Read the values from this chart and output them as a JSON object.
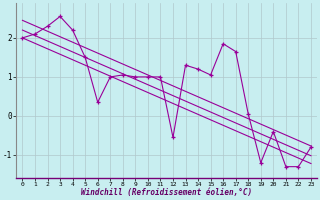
{
  "xlabel": "Windchill (Refroidissement éolien,°C)",
  "bg_color": "#c8eef0",
  "line_color": "#990099",
  "grid_color": "#b0c8cc",
  "xlim": [
    -0.5,
    23.5
  ],
  "ylim": [
    -1.6,
    2.9
  ],
  "yticks": [
    -1,
    0,
    1,
    2
  ],
  "xticks": [
    0,
    1,
    2,
    3,
    4,
    5,
    6,
    7,
    8,
    9,
    10,
    11,
    12,
    13,
    14,
    15,
    16,
    17,
    18,
    19,
    20,
    21,
    22,
    23
  ],
  "hours": [
    0,
    1,
    2,
    3,
    4,
    5,
    6,
    7,
    8,
    9,
    10,
    11,
    12,
    13,
    14,
    15,
    16,
    17,
    18,
    19,
    20,
    21,
    22,
    23
  ],
  "line1": [
    2.0,
    2.1,
    2.3,
    2.55,
    2.2,
    1.5,
    0.35,
    1.0,
    1.05,
    1.0,
    1.0,
    1.0,
    -0.55,
    1.3,
    1.2,
    1.05,
    1.85,
    1.65,
    0.05,
    -1.2,
    -0.4,
    -1.3,
    -1.3,
    -0.8
  ],
  "trend_upper": [
    2.45,
    2.31,
    2.17,
    2.03,
    1.89,
    1.75,
    1.61,
    1.47,
    1.33,
    1.19,
    1.05,
    0.91,
    0.77,
    0.63,
    0.49,
    0.35,
    0.21,
    0.07,
    -0.07,
    -0.21,
    -0.35,
    -0.49,
    -0.63,
    -0.77
  ],
  "trend_mid": [
    2.2,
    2.06,
    1.92,
    1.78,
    1.64,
    1.5,
    1.36,
    1.22,
    1.08,
    0.94,
    0.8,
    0.66,
    0.52,
    0.38,
    0.24,
    0.1,
    -0.04,
    -0.18,
    -0.32,
    -0.46,
    -0.6,
    -0.74,
    -0.88,
    -1.02
  ],
  "trend_lower": [
    2.0,
    1.86,
    1.72,
    1.58,
    1.44,
    1.3,
    1.16,
    1.02,
    0.88,
    0.74,
    0.6,
    0.46,
    0.32,
    0.18,
    0.04,
    -0.1,
    -0.24,
    -0.38,
    -0.52,
    -0.66,
    -0.8,
    -0.94,
    -1.08,
    -1.22
  ]
}
